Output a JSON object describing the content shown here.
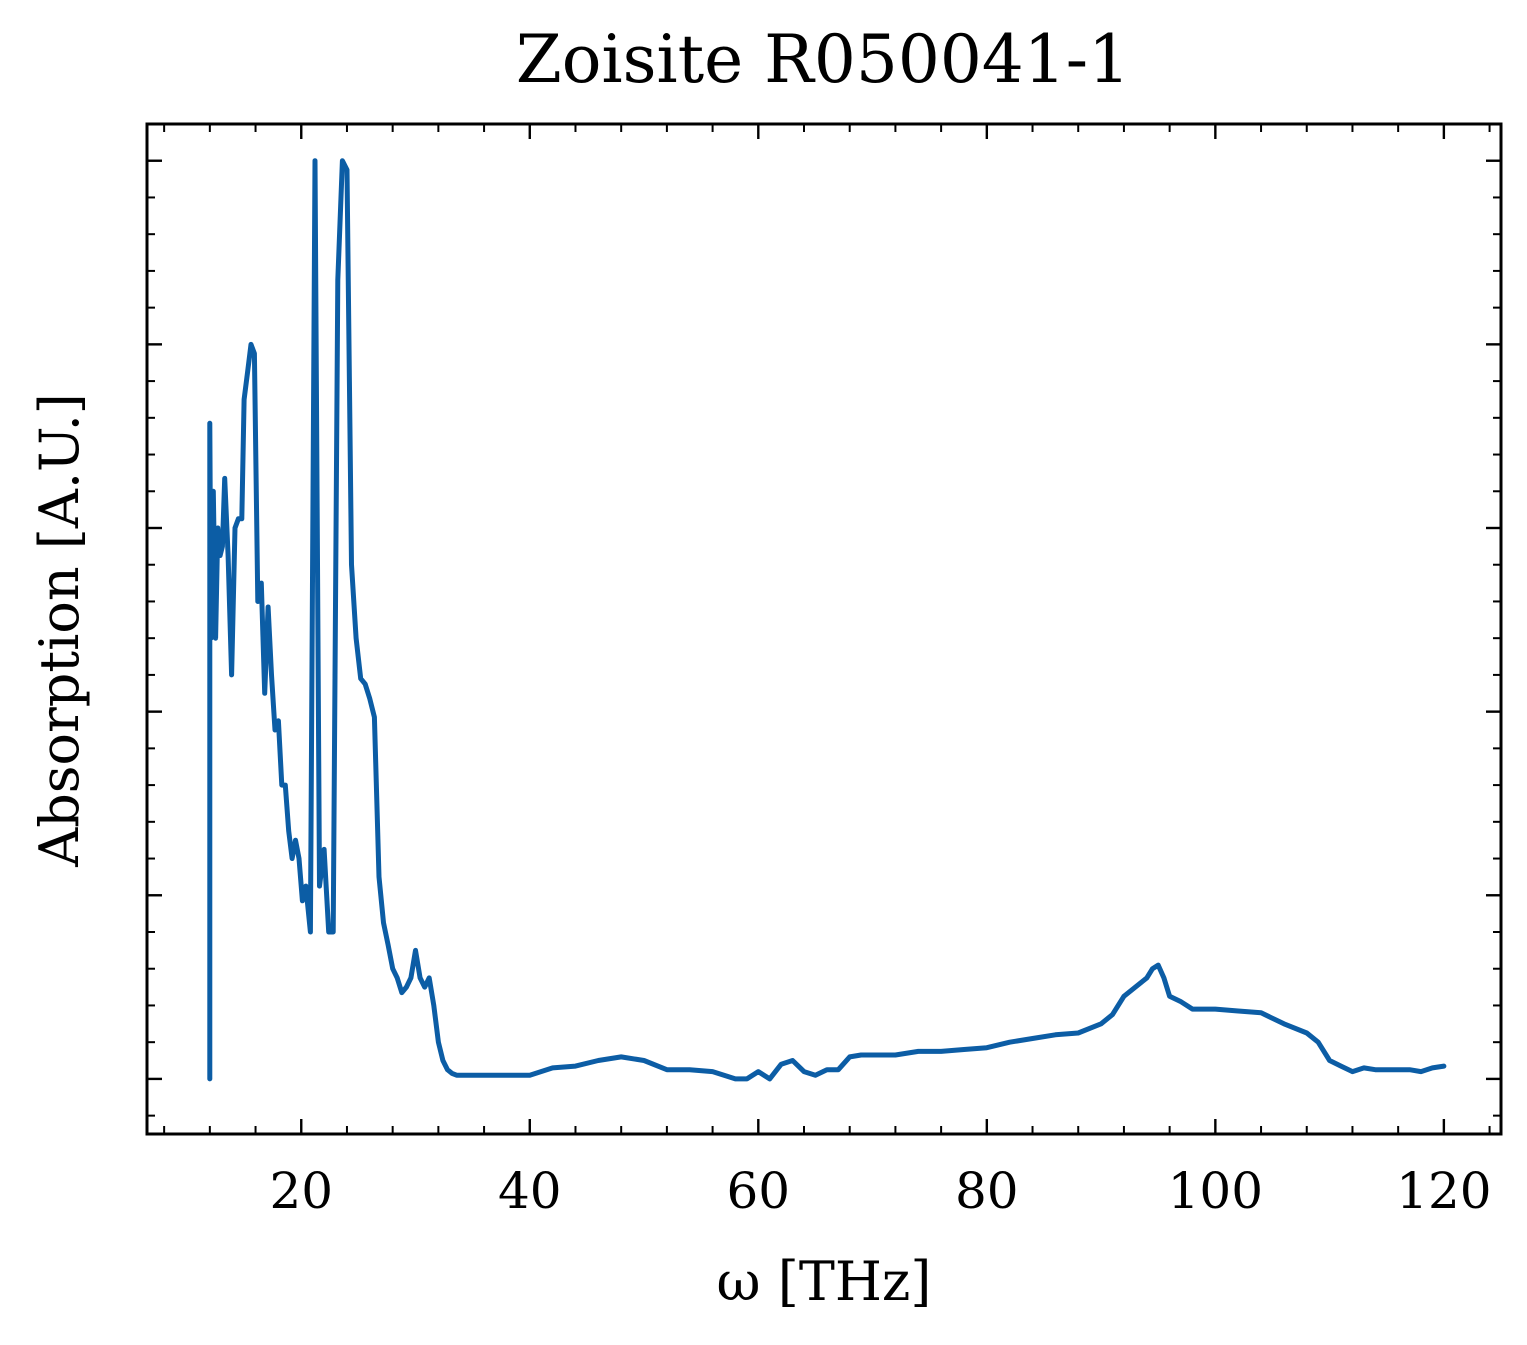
{
  "chart_data": {
    "type": "line",
    "title": "Zoisite R050041-1",
    "xlabel": "ω [THz]",
    "ylabel": "Absorption [A.U.]",
    "xlim": [
      6.5,
      125
    ],
    "ylim": [
      -0.3,
      5.2
    ],
    "xticks": [
      20,
      40,
      60,
      80,
      100,
      120
    ],
    "xtick_labels": [
      "20",
      "40",
      "60",
      "80",
      "100",
      "120"
    ],
    "xminor_step": 4,
    "yticks": [
      0,
      1,
      2,
      3,
      4,
      5
    ],
    "yminor_step": 0.2,
    "show_ytick_labels": false,
    "grid": false,
    "colors": {
      "series": "#0c5da5",
      "axes": "#000000",
      "background": "#ffffff"
    },
    "series": [
      {
        "color": "#0c5da5",
        "x": [
          12.0,
          12.0,
          12.1,
          12.3,
          12.5,
          12.7,
          12.9,
          13.1,
          13.3,
          13.6,
          13.9,
          14.2,
          14.5,
          14.8,
          15.0,
          15.3,
          15.6,
          15.9,
          16.2,
          16.5,
          16.8,
          17.1,
          17.4,
          17.7,
          18.0,
          18.3,
          18.6,
          18.9,
          19.2,
          19.5,
          19.8,
          20.1,
          20.4,
          20.8,
          21.2,
          21.6,
          22.0,
          22.4,
          22.8,
          23.2,
          23.6,
          24.0,
          24.4,
          24.8,
          25.2,
          25.6,
          26.0,
          26.4,
          26.8,
          27.2,
          27.6,
          28.0,
          28.4,
          28.8,
          29.2,
          29.6,
          30.0,
          30.4,
          30.8,
          31.2,
          31.6,
          32.0,
          32.4,
          32.8,
          33.2,
          33.6,
          34.0,
          34.4,
          34.8,
          35.2,
          35.6,
          36.0,
          36.4,
          37.0,
          38.0,
          40.0,
          42.0,
          44.0,
          46.0,
          48.0,
          50.0,
          52.0,
          54.0,
          56.0,
          58.0,
          59.0,
          60.0,
          61.0,
          62.0,
          63.0,
          64.0,
          65.0,
          66.0,
          67.0,
          68.0,
          69.0,
          70.0,
          72.0,
          74.0,
          76.0,
          78.0,
          80.0,
          82.0,
          84.0,
          86.0,
          88.0,
          90.0,
          91.0,
          92.0,
          93.0,
          94.0,
          94.5,
          95.0,
          95.5,
          96.0,
          97.0,
          98.0,
          99.0,
          100.0,
          102.0,
          104.0,
          106.0,
          108.0,
          109.0,
          110.0,
          111.0,
          112.0,
          113.0,
          114.0,
          115.0,
          116.0,
          117.0,
          118.0,
          119.0,
          120.0
        ],
        "values": [
          0.0,
          3.57,
          2.4,
          3.2,
          2.4,
          3.0,
          2.85,
          2.9,
          3.27,
          2.85,
          2.2,
          3.0,
          3.05,
          3.05,
          3.7,
          3.85,
          4.0,
          3.95,
          2.6,
          2.7,
          2.1,
          2.57,
          2.2,
          1.9,
          1.95,
          1.6,
          1.6,
          1.35,
          1.2,
          1.3,
          1.2,
          0.97,
          1.05,
          0.8,
          5.0,
          1.05,
          1.25,
          0.8,
          0.8,
          4.35,
          5.0,
          4.95,
          2.8,
          2.4,
          2.18,
          2.15,
          2.07,
          1.97,
          1.1,
          0.85,
          0.73,
          0.6,
          0.55,
          0.47,
          0.5,
          0.55,
          0.7,
          0.55,
          0.5,
          0.55,
          0.4,
          0.2,
          0.1,
          0.05,
          0.03,
          0.02,
          0.02,
          0.02,
          0.02,
          0.02,
          0.02,
          0.02,
          0.02,
          0.02,
          0.02,
          0.02,
          0.06,
          0.07,
          0.1,
          0.12,
          0.1,
          0.05,
          0.05,
          0.04,
          0.0,
          0.0,
          0.04,
          0.0,
          0.08,
          0.1,
          0.04,
          0.02,
          0.05,
          0.05,
          0.12,
          0.13,
          0.13,
          0.13,
          0.15,
          0.15,
          0.16,
          0.17,
          0.2,
          0.22,
          0.24,
          0.25,
          0.3,
          0.35,
          0.45,
          0.5,
          0.55,
          0.6,
          0.62,
          0.55,
          0.45,
          0.42,
          0.38,
          0.38,
          0.38,
          0.37,
          0.36,
          0.3,
          0.25,
          0.2,
          0.1,
          0.07,
          0.04,
          0.06,
          0.05,
          0.05,
          0.05,
          0.05,
          0.04,
          0.06,
          0.07
        ]
      }
    ]
  }
}
